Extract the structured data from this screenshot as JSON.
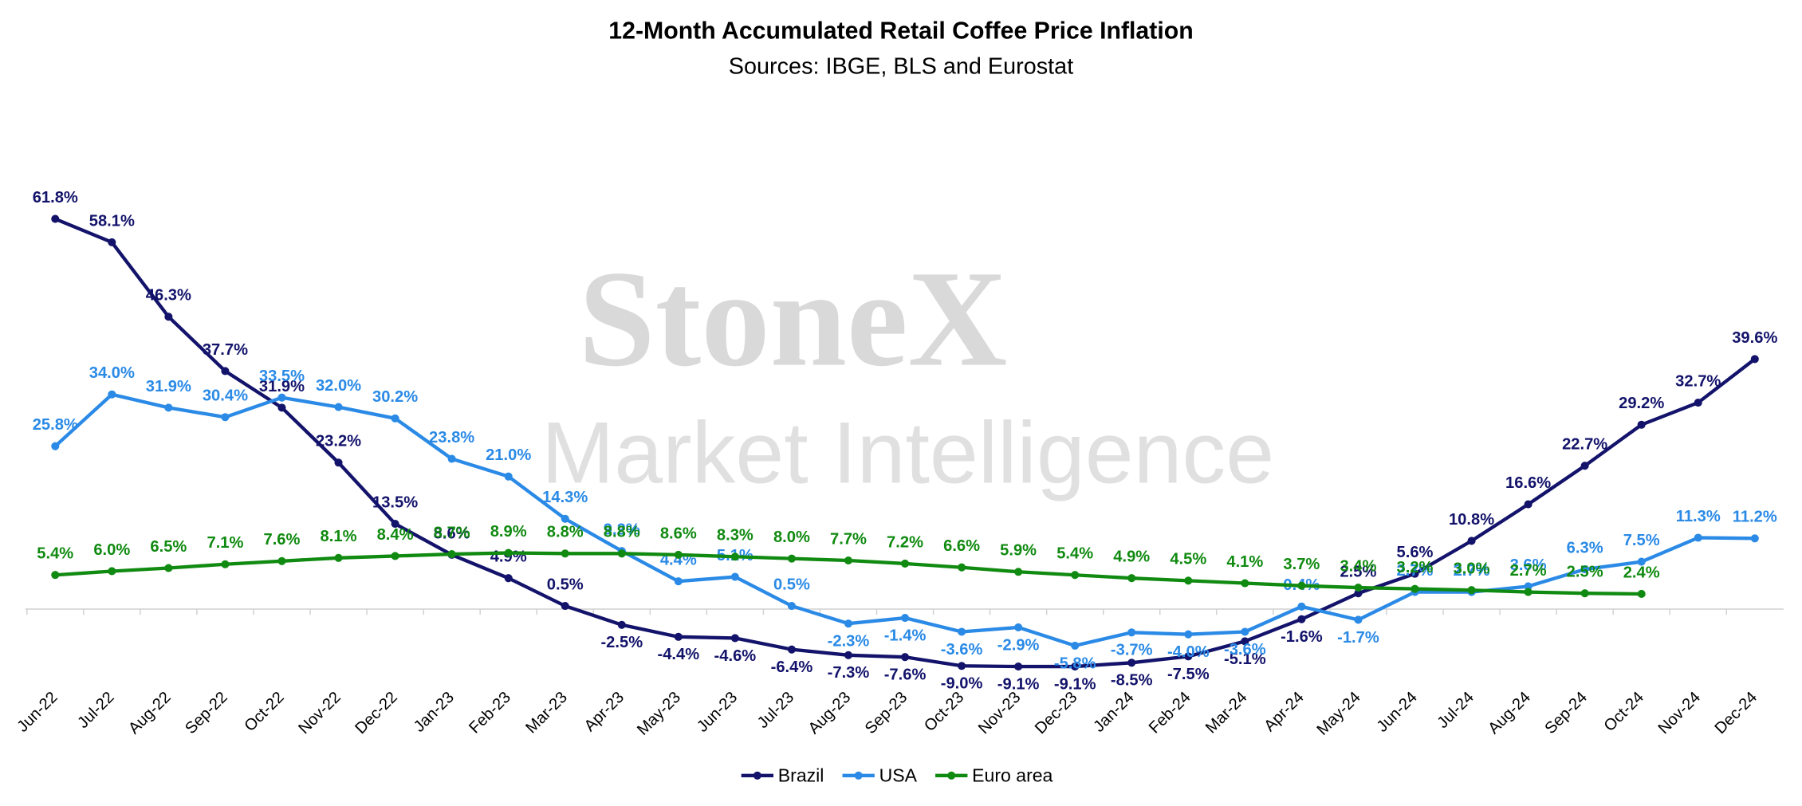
{
  "chart_data": {
    "type": "line",
    "title": "12-Month Accumulated Retail Coffee Price Inflation",
    "subtitle": "Sources: IBGE, BLS and Eurostat",
    "watermark": [
      "StoneX",
      "Market Intelligence"
    ],
    "categories": [
      "Jun-22",
      "Jul-22",
      "Aug-22",
      "Sep-22",
      "Oct-22",
      "Nov-22",
      "Dec-22",
      "Jan-23",
      "Feb-23",
      "Mar-23",
      "Apr-23",
      "May-23",
      "Jun-23",
      "Jul-23",
      "Aug-23",
      "Sep-23",
      "Oct-23",
      "Nov-23",
      "Dec-23",
      "Jan-24",
      "Feb-24",
      "Mar-24",
      "Apr-24",
      "May-24",
      "Jun-24",
      "Jul-24",
      "Aug-24",
      "Sep-24",
      "Oct-24",
      "Nov-24",
      "Dec-24"
    ],
    "series": [
      {
        "name": "Brazil",
        "color": "#13136b",
        "values": [
          61.8,
          58.1,
          46.3,
          37.7,
          31.9,
          23.2,
          13.5,
          8.6,
          4.9,
          0.5,
          -2.5,
          -4.4,
          -4.6,
          -6.4,
          -7.3,
          -7.6,
          -9.0,
          -9.1,
          -9.1,
          -8.5,
          -7.5,
          -5.1,
          -1.6,
          2.5,
          5.6,
          10.8,
          16.6,
          22.7,
          29.2,
          32.7,
          39.6
        ],
        "value_labels": [
          "61.8%",
          "58.1%",
          "46.3%",
          "37.7%",
          "31.9%",
          "23.2%",
          "13.5%",
          "8.6%",
          "4.9%",
          "0.5%",
          "-2.5%",
          "-4.4%",
          "-4.6%",
          "-6.4%",
          "-7.3%",
          "-7.6%",
          "-9.0%",
          "-9.1%",
          "-9.1%",
          "-8.5%",
          "-7.5%",
          "-5.1%",
          "-1.6%",
          "2.5%",
          "5.6%",
          "10.8%",
          "16.6%",
          "22.7%",
          "29.2%",
          "32.7%",
          "39.6%"
        ]
      },
      {
        "name": "USA",
        "color": "#2a8ae6",
        "values": [
          25.8,
          34.0,
          31.9,
          30.4,
          33.5,
          32.0,
          30.2,
          23.8,
          21.0,
          14.3,
          9.2,
          4.4,
          5.1,
          0.5,
          -2.3,
          -1.4,
          -3.6,
          -2.9,
          -5.8,
          -3.7,
          -4.0,
          -3.6,
          0.4,
          -1.7,
          2.7,
          2.7,
          3.6,
          6.3,
          7.5,
          11.3,
          11.2
        ],
        "value_labels": [
          "25.8%",
          "34.0%",
          "31.9%",
          "30.4%",
          "33.5%",
          "32.0%",
          "30.2%",
          "23.8%",
          "21.0%",
          "14.3%",
          "9.2%",
          "4.4%",
          "5.1%",
          "0.5%",
          "-2.3%",
          "-1.4%",
          "-3.6%",
          "-2.9%",
          "-5.8%",
          "-3.7%",
          "-4.0%",
          "-3.6%",
          "0.4%",
          "-1.7%",
          "2.7%",
          "2.7%",
          "3.6%",
          "6.3%",
          "7.5%",
          "11.3%",
          "11.2%"
        ]
      },
      {
        "name": "Euro area",
        "color": "#108a10",
        "values": [
          5.4,
          6.0,
          6.5,
          7.1,
          7.6,
          8.1,
          8.4,
          8.7,
          8.9,
          8.8,
          8.8,
          8.6,
          8.3,
          8.0,
          7.7,
          7.2,
          6.6,
          5.9,
          5.4,
          4.9,
          4.5,
          4.1,
          3.7,
          3.4,
          3.2,
          3.0,
          2.7,
          2.5,
          2.4,
          null,
          null
        ],
        "value_labels": [
          "5.4%",
          "6.0%",
          "6.5%",
          "7.1%",
          "7.6%",
          "8.1%",
          "8.4%",
          "8.7%",
          "8.9%",
          "8.8%",
          "8.8%",
          "8.6%",
          "8.3%",
          "8.0%",
          "7.7%",
          "7.2%",
          "6.6%",
          "5.9%",
          "5.4%",
          "4.9%",
          "4.5%",
          "4.1%",
          "3.7%",
          "3.4%",
          "3.2%",
          "3.0%",
          "2.7%",
          "2.5%",
          "2.4%",
          null,
          null
        ]
      }
    ],
    "ylim": [
      -20,
      75
    ],
    "grid": false,
    "legend": "bottom"
  }
}
